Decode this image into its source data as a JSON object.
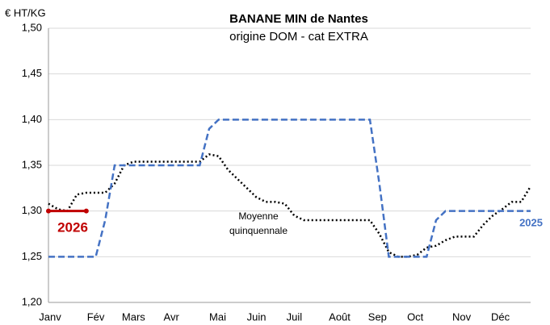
{
  "chart_data": {
    "type": "line",
    "title": "BANANE MIN de Nantes",
    "subtitle": "origine DOM - cat EXTRA",
    "y_label": "€ HT/KG",
    "annotations": [
      "Moyenne",
      "quinquennale"
    ],
    "x": [
      1,
      2,
      3,
      4,
      5,
      6,
      7,
      8,
      9,
      10,
      11,
      12,
      13,
      14,
      15,
      16,
      17,
      18,
      19,
      20,
      21,
      22,
      23,
      24,
      25,
      26,
      27,
      28,
      29,
      30,
      31,
      32,
      33,
      34,
      35,
      36,
      37,
      38,
      39,
      40,
      41,
      42,
      43,
      44,
      45,
      46,
      47,
      48,
      49,
      50,
      51,
      52
    ],
    "xlim": [
      1,
      52
    ],
    "xticks": [
      {
        "value": 1,
        "label": "Janv"
      },
      {
        "value": 6,
        "label": "Fév"
      },
      {
        "value": 10,
        "label": "Mars"
      },
      {
        "value": 14,
        "label": "Avr"
      },
      {
        "value": 18.9,
        "label": "Mai"
      },
      {
        "value": 23,
        "label": "Juin"
      },
      {
        "value": 27,
        "label": "Juil"
      },
      {
        "value": 31.8,
        "label": "Août"
      },
      {
        "value": 35.8,
        "label": "Sep"
      },
      {
        "value": 39.8,
        "label": "Oct"
      },
      {
        "value": 44.7,
        "label": "Nov"
      },
      {
        "value": 48.8,
        "label": "Déc"
      }
    ],
    "ylim": [
      1.2,
      1.5
    ],
    "yticks": [
      {
        "value": 1.2,
        "label": "1,20"
      },
      {
        "value": 1.25,
        "label": "1,25"
      },
      {
        "value": 1.3,
        "label": "1,30"
      },
      {
        "value": 1.35,
        "label": "1,35"
      },
      {
        "value": 1.4,
        "label": "1,40"
      },
      {
        "value": 1.45,
        "label": "1,45"
      },
      {
        "value": 1.5,
        "label": "1,50"
      }
    ],
    "grid": true,
    "series": [
      {
        "name": "Moyenne quinquennale",
        "color": "#000000",
        "style": "dotted",
        "values": [
          1.308,
          1.302,
          1.3,
          1.318,
          1.32,
          1.32,
          1.32,
          1.33,
          1.35,
          1.354,
          1.354,
          1.354,
          1.354,
          1.354,
          1.354,
          1.354,
          1.354,
          1.362,
          1.36,
          1.345,
          1.335,
          1.325,
          1.315,
          1.31,
          1.31,
          1.308,
          1.295,
          1.29,
          1.29,
          1.29,
          1.29,
          1.29,
          1.29,
          1.29,
          1.29,
          1.275,
          1.255,
          1.25,
          1.25,
          1.252,
          1.26,
          1.262,
          1.268,
          1.272,
          1.272,
          1.272,
          1.285,
          1.295,
          1.302,
          1.31,
          1.31,
          1.327
        ]
      },
      {
        "name": "2025",
        "color": "#4472c4",
        "style": "dashed",
        "values": [
          1.25,
          1.25,
          1.25,
          1.25,
          1.25,
          1.25,
          1.29,
          1.35,
          1.35,
          1.35,
          1.35,
          1.35,
          1.35,
          1.35,
          1.35,
          1.35,
          1.35,
          1.39,
          1.4,
          1.4,
          1.4,
          1.4,
          1.4,
          1.4,
          1.4,
          1.4,
          1.4,
          1.4,
          1.4,
          1.4,
          1.4,
          1.4,
          1.4,
          1.4,
          1.4,
          1.33,
          1.25,
          1.25,
          1.25,
          1.25,
          1.25,
          1.29,
          1.3,
          1.3,
          1.3,
          1.3,
          1.3,
          1.3,
          1.3,
          1.3,
          1.3,
          1.3
        ]
      },
      {
        "name": "2026",
        "color": "#c00000",
        "style": "solid",
        "values": [
          1.3,
          1.3,
          1.3,
          1.3,
          1.3,
          null,
          null,
          null,
          null,
          null,
          null,
          null,
          null,
          null,
          null,
          null,
          null,
          null,
          null,
          null,
          null,
          null,
          null,
          null,
          null,
          null,
          null,
          null,
          null,
          null,
          null,
          null,
          null,
          null,
          null,
          null,
          null,
          null,
          null,
          null,
          null,
          null,
          null,
          null,
          null,
          null,
          null,
          null,
          null,
          null,
          null,
          null
        ]
      }
    ]
  }
}
